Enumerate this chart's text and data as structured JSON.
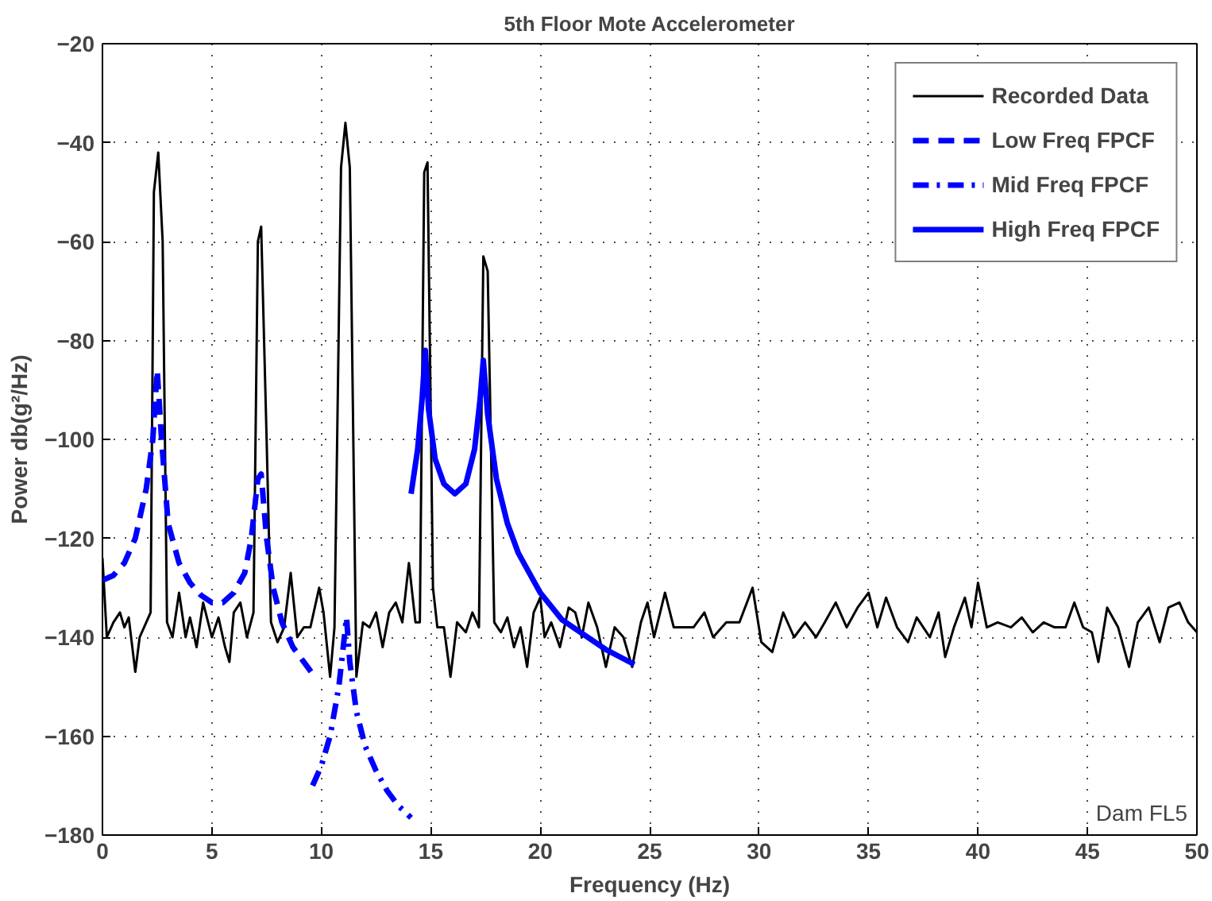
{
  "chart_data": {
    "type": "line",
    "title": "5th Floor Mote Accelerometer",
    "xlabel": "Frequency (Hz)",
    "ylabel": "Power db(g²/Hz)",
    "xlim": [
      0,
      50
    ],
    "ylim": [
      -180,
      -20
    ],
    "xticks": [
      0,
      5,
      10,
      15,
      20,
      25,
      30,
      35,
      40,
      45,
      50
    ],
    "yticks": [
      -180,
      -160,
      -140,
      -120,
      -100,
      -80,
      -60,
      -40,
      -20
    ],
    "grid": true,
    "legend": "top right",
    "annotations": [
      "Dam FL5"
    ],
    "series": [
      {
        "name": "Recorded Data",
        "color": "#000000",
        "line_style": "solid",
        "x": [
          0,
          0.2,
          0.5,
          0.8,
          1.0,
          1.2,
          1.5,
          1.7,
          2.0,
          2.2,
          2.35,
          2.55,
          2.75,
          2.95,
          3.2,
          3.5,
          3.8,
          4.0,
          4.3,
          4.6,
          5.0,
          5.3,
          5.6,
          5.8,
          6.0,
          6.3,
          6.6,
          6.9,
          7.1,
          7.25,
          7.5,
          7.7,
          8.0,
          8.3,
          8.6,
          8.9,
          9.2,
          9.5,
          9.9,
          10.1,
          10.4,
          10.6,
          10.9,
          11.1,
          11.3,
          11.6,
          11.9,
          12.2,
          12.5,
          12.8,
          13.1,
          13.4,
          13.7,
          14.0,
          14.3,
          14.5,
          14.7,
          14.85,
          15.1,
          15.3,
          15.6,
          15.9,
          16.2,
          16.6,
          16.9,
          17.2,
          17.4,
          17.6,
          17.9,
          18.2,
          18.5,
          18.8,
          19.1,
          19.4,
          19.7,
          20.0,
          20.2,
          20.5,
          20.9,
          21.3,
          21.6,
          21.9,
          22.2,
          22.6,
          23.0,
          23.4,
          23.8,
          24.2,
          24.6,
          24.9,
          25.2,
          25.7,
          26.1,
          26.6,
          27.0,
          27.5,
          27.9,
          28.5,
          29.1,
          29.7,
          30.1,
          30.6,
          31.1,
          31.6,
          32.1,
          32.6,
          33.0,
          33.5,
          34.0,
          34.5,
          35.0,
          35.4,
          35.8,
          36.3,
          36.8,
          37.2,
          37.8,
          38.2,
          38.5,
          38.9,
          39.4,
          39.7,
          40.0,
          40.4,
          40.9,
          41.5,
          42.0,
          42.5,
          43.0,
          43.5,
          44.0,
          44.4,
          44.8,
          45.2,
          45.5,
          45.9,
          46.4,
          46.9,
          47.3,
          47.8,
          48.3,
          48.7,
          49.2,
          49.6,
          50.0
        ],
        "values": [
          -124,
          -140,
          -137,
          -135,
          -138,
          -136,
          -147,
          -140,
          -137,
          -135,
          -50,
          -42,
          -60,
          -137,
          -140,
          -131,
          -140,
          -136,
          -142,
          -133,
          -140,
          -136,
          -142,
          -145,
          -135,
          -133,
          -140,
          -135,
          -60,
          -57,
          -100,
          -137,
          -141,
          -138,
          -127,
          -140,
          -138,
          -138,
          -130,
          -135,
          -148,
          -138,
          -45,
          -36,
          -45,
          -148,
          -137,
          -138,
          -135,
          -142,
          -135,
          -133,
          -137,
          -125,
          -137,
          -137,
          -46,
          -44,
          -130,
          -138,
          -138,
          -148,
          -137,
          -139,
          -135,
          -138,
          -63,
          -66,
          -137,
          -139,
          -136,
          -142,
          -138,
          -146,
          -135,
          -132,
          -140,
          -137,
          -142,
          -134,
          -135,
          -140,
          -133,
          -138,
          -146,
          -138,
          -140,
          -146,
          -137,
          -133,
          -140,
          -131,
          -138,
          -138,
          -138,
          -135,
          -140,
          -137,
          -137,
          -130,
          -141,
          -143,
          -135,
          -140,
          -137,
          -140,
          -137,
          -133,
          -138,
          -134,
          -131,
          -138,
          -132,
          -138,
          -141,
          -136,
          -140,
          -135,
          -144,
          -138,
          -132,
          -138,
          -129,
          -138,
          -137,
          -138,
          -136,
          -139,
          -137,
          -138,
          -138,
          -133,
          -138,
          -139,
          -145,
          -134,
          -138,
          -146,
          -137,
          -134,
          -141,
          -134,
          -133,
          -137,
          -139
        ]
      },
      {
        "name": "Low Freq FPCF",
        "color": "#0000ff",
        "line_style": "dashed",
        "x": [
          0,
          0.5,
          1.0,
          1.5,
          2.0,
          2.3,
          2.5,
          2.7,
          3.0,
          3.5,
          4.0,
          4.5,
          5.0,
          5.5,
          6.0,
          6.5,
          6.8,
          7.1,
          7.25,
          7.5,
          7.8,
          8.2,
          8.7,
          9.2,
          9.7
        ],
        "values": [
          -128.5,
          -127.5,
          -125,
          -120,
          -110,
          -100,
          -86,
          -100,
          -117,
          -125,
          -129,
          -131.5,
          -133,
          -133,
          -131,
          -127,
          -120,
          -108,
          -107,
          -120,
          -130,
          -137,
          -142,
          -145,
          -148
        ]
      },
      {
        "name": "Mid Freq FPCF",
        "color": "#0000ff",
        "line_style": "dashdot",
        "x": [
          9.6,
          10.0,
          10.4,
          10.8,
          11.0,
          11.15,
          11.3,
          11.6,
          12.0,
          12.5,
          13.0,
          13.5,
          14.1
        ],
        "values": [
          -170,
          -166,
          -160,
          -150,
          -142,
          -136,
          -145,
          -155,
          -162,
          -167,
          -171,
          -174,
          -176.5
        ]
      },
      {
        "name": "High Freq FPCF",
        "color": "#0000ff",
        "line_style": "solid",
        "x": [
          14.1,
          14.4,
          14.6,
          14.75,
          14.9,
          15.2,
          15.6,
          16.1,
          16.6,
          17.0,
          17.25,
          17.4,
          17.6,
          18.0,
          18.5,
          19.0,
          19.5,
          20.0,
          21.0,
          22.0,
          23.0,
          24.3
        ],
        "values": [
          -111,
          -102,
          -92,
          -82,
          -94,
          -104,
          -109,
          -111,
          -109,
          -102,
          -92,
          -84,
          -95,
          -108,
          -117,
          -123,
          -127,
          -131,
          -136.5,
          -139.5,
          -142.5,
          -145.5
        ]
      }
    ]
  }
}
